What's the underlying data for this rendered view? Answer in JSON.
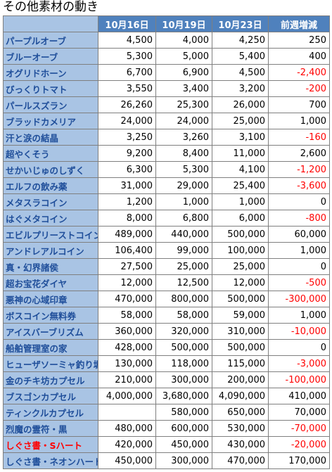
{
  "title": "その他素材の動き",
  "table": {
    "header": [
      "10月16日",
      "10月19日",
      "10月23日",
      "前週増減"
    ],
    "rows": [
      {
        "name": "パープルオーブ",
        "cells": [
          "4,500",
          "4,000",
          "4,250",
          "250"
        ]
      },
      {
        "name": "ブルーオーブ",
        "cells": [
          "5,300",
          "5,000",
          "5,400",
          "400"
        ]
      },
      {
        "name": "オグリドホーン",
        "cells": [
          "6,700",
          "6,900",
          "4,500",
          "-2,400"
        ]
      },
      {
        "name": "びっくりトマト",
        "cells": [
          "3,550",
          "3,400",
          "3,200",
          "-200"
        ]
      },
      {
        "name": "パールスズラン",
        "cells": [
          "26,260",
          "25,300",
          "26,000",
          "700"
        ]
      },
      {
        "name": "ブラッドカメリア",
        "cells": [
          "24,000",
          "24,000",
          "25,000",
          "1,000"
        ]
      },
      {
        "name": "汗と涙の結晶",
        "cells": [
          "3,250",
          "3,260",
          "3,100",
          "-160"
        ]
      },
      {
        "name": "超やくそう",
        "cells": [
          "9,200",
          "8,400",
          "11,000",
          "2,600"
        ]
      },
      {
        "name": "せかいじゅのしずく",
        "cells": [
          "6,300",
          "5,300",
          "4,100",
          "-1,200"
        ]
      },
      {
        "name": "エルフの飲み薬",
        "cells": [
          "31,000",
          "29,000",
          "25,400",
          "-3,600"
        ]
      },
      {
        "name": "メタスラコイン",
        "cells": [
          "1,200",
          "1,000",
          "1,000",
          "0"
        ]
      },
      {
        "name": "はぐメタコイン",
        "cells": [
          "8,000",
          "6,800",
          "6,000",
          "-800"
        ]
      },
      {
        "name": "エビルプリーストコイン",
        "cells": [
          "489,000",
          "440,000",
          "500,000",
          "60,000"
        ]
      },
      {
        "name": "アンドレアルコイン",
        "cells": [
          "106,400",
          "99,000",
          "100,000",
          "1,000"
        ]
      },
      {
        "name": "真・幻界諸侯",
        "cells": [
          "27,500",
          "25,000",
          "25,000",
          "0"
        ]
      },
      {
        "name": "超お宝花ダイヤ",
        "cells": [
          "12,000",
          "12,500",
          "12,000",
          "-500"
        ]
      },
      {
        "name": "悪神の心域印章",
        "cells": [
          "470,000",
          "800,000",
          "500,000",
          "-300,000"
        ]
      },
      {
        "name": "ボスコイン無料券",
        "cells": [
          "58,000",
          "58,000",
          "59,000",
          "1,000"
        ]
      },
      {
        "name": "アイスバーブリズム",
        "cells": [
          "360,000",
          "320,000",
          "310,000",
          "-10,000"
        ]
      },
      {
        "name": "船舶管理室の家",
        "cells": [
          "428,000",
          "500,000",
          "500,000",
          "0"
        ]
      },
      {
        "name": "ヒューザソーミャ釣り堀",
        "cells": [
          "130,000",
          "118,000",
          "115,000",
          "-3,000"
        ]
      },
      {
        "name": "金のチキ坊カプセル",
        "cells": [
          "210,000",
          "300,000",
          "200,000",
          "-100,000"
        ]
      },
      {
        "name": "ブスゴンカプセル",
        "cells": [
          "4,000,000",
          "3,680,000",
          "4,090,000",
          "410,000"
        ]
      },
      {
        "name": "ティンクルカプセル",
        "cells": [
          null,
          "580,000",
          "650,000",
          "70,000"
        ]
      },
      {
        "name": "烈魔の霊符・黒",
        "cells": [
          "480,000",
          "600,000",
          "530,000",
          "-70,000"
        ]
      },
      {
        "name": "しぐさ書・Sハート",
        "name_color": "#ff0000",
        "cells": [
          "420,000",
          "450,000",
          "430,000",
          "-20,000"
        ]
      },
      {
        "name": "しぐさ書・ネオンハート",
        "cells": [
          "450,000",
          "300,000",
          "470,000",
          "170,000"
        ]
      }
    ]
  }
}
